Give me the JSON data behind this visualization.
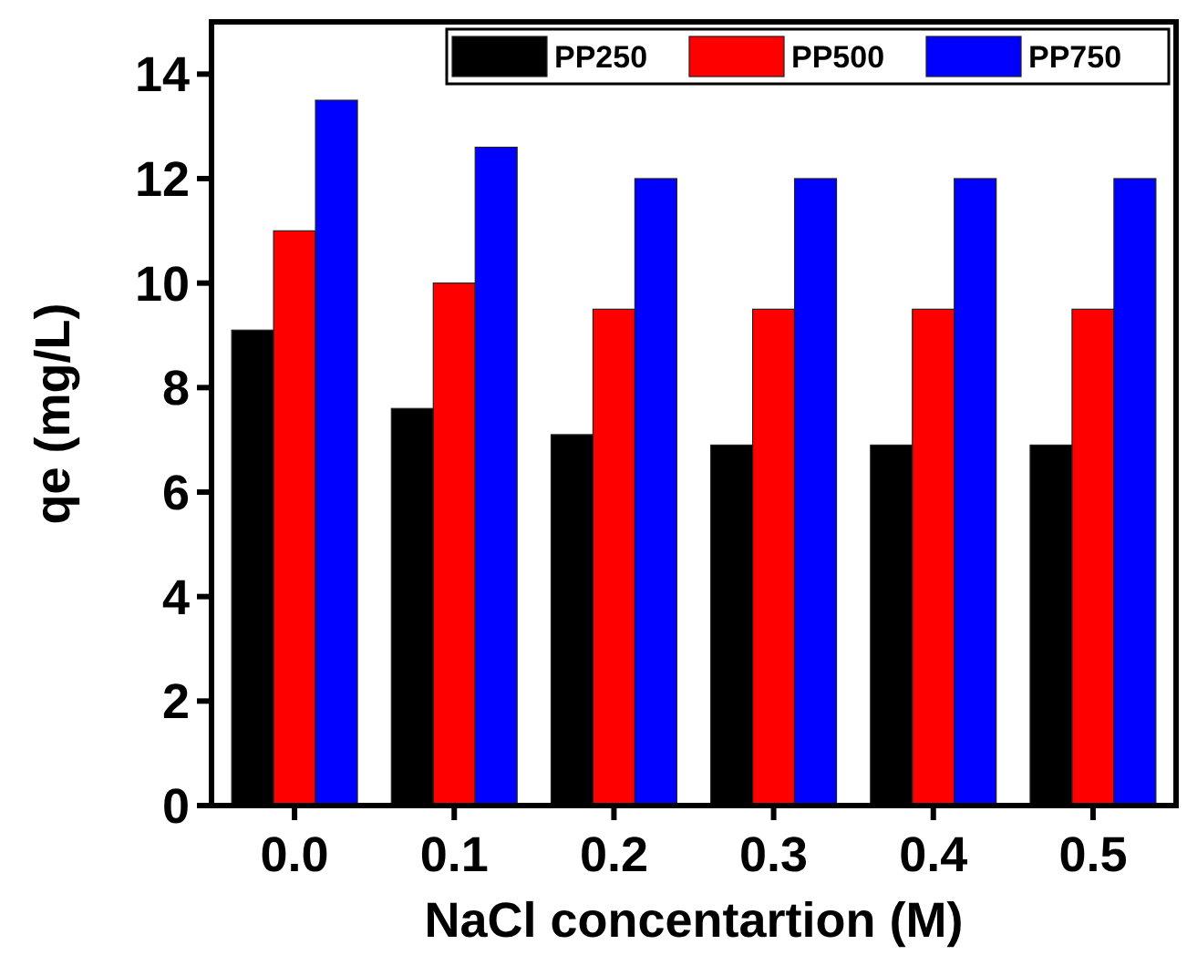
{
  "chart_data": {
    "type": "bar",
    "xlabel": "NaCl concentartion (M)",
    "ylabel": "qe (mg/L)",
    "categories": [
      "0.0",
      "0.1",
      "0.2",
      "0.3",
      "0.4",
      "0.5"
    ],
    "series": [
      {
        "name": "PP250",
        "color": "#000000",
        "values": [
          9.1,
          7.6,
          7.1,
          6.9,
          6.9,
          6.9
        ]
      },
      {
        "name": "PP500",
        "color": "#ff0000",
        "values": [
          11.0,
          10.0,
          9.5,
          9.5,
          9.5,
          9.5
        ]
      },
      {
        "name": "PP750",
        "color": "#0000ff",
        "values": [
          13.5,
          12.6,
          12.0,
          12.0,
          12.0,
          12.0
        ]
      }
    ],
    "ylim": [
      0,
      15
    ],
    "yticks": [
      0,
      2,
      4,
      6,
      8,
      10,
      12,
      14
    ],
    "grid": false,
    "legend": "top right"
  }
}
